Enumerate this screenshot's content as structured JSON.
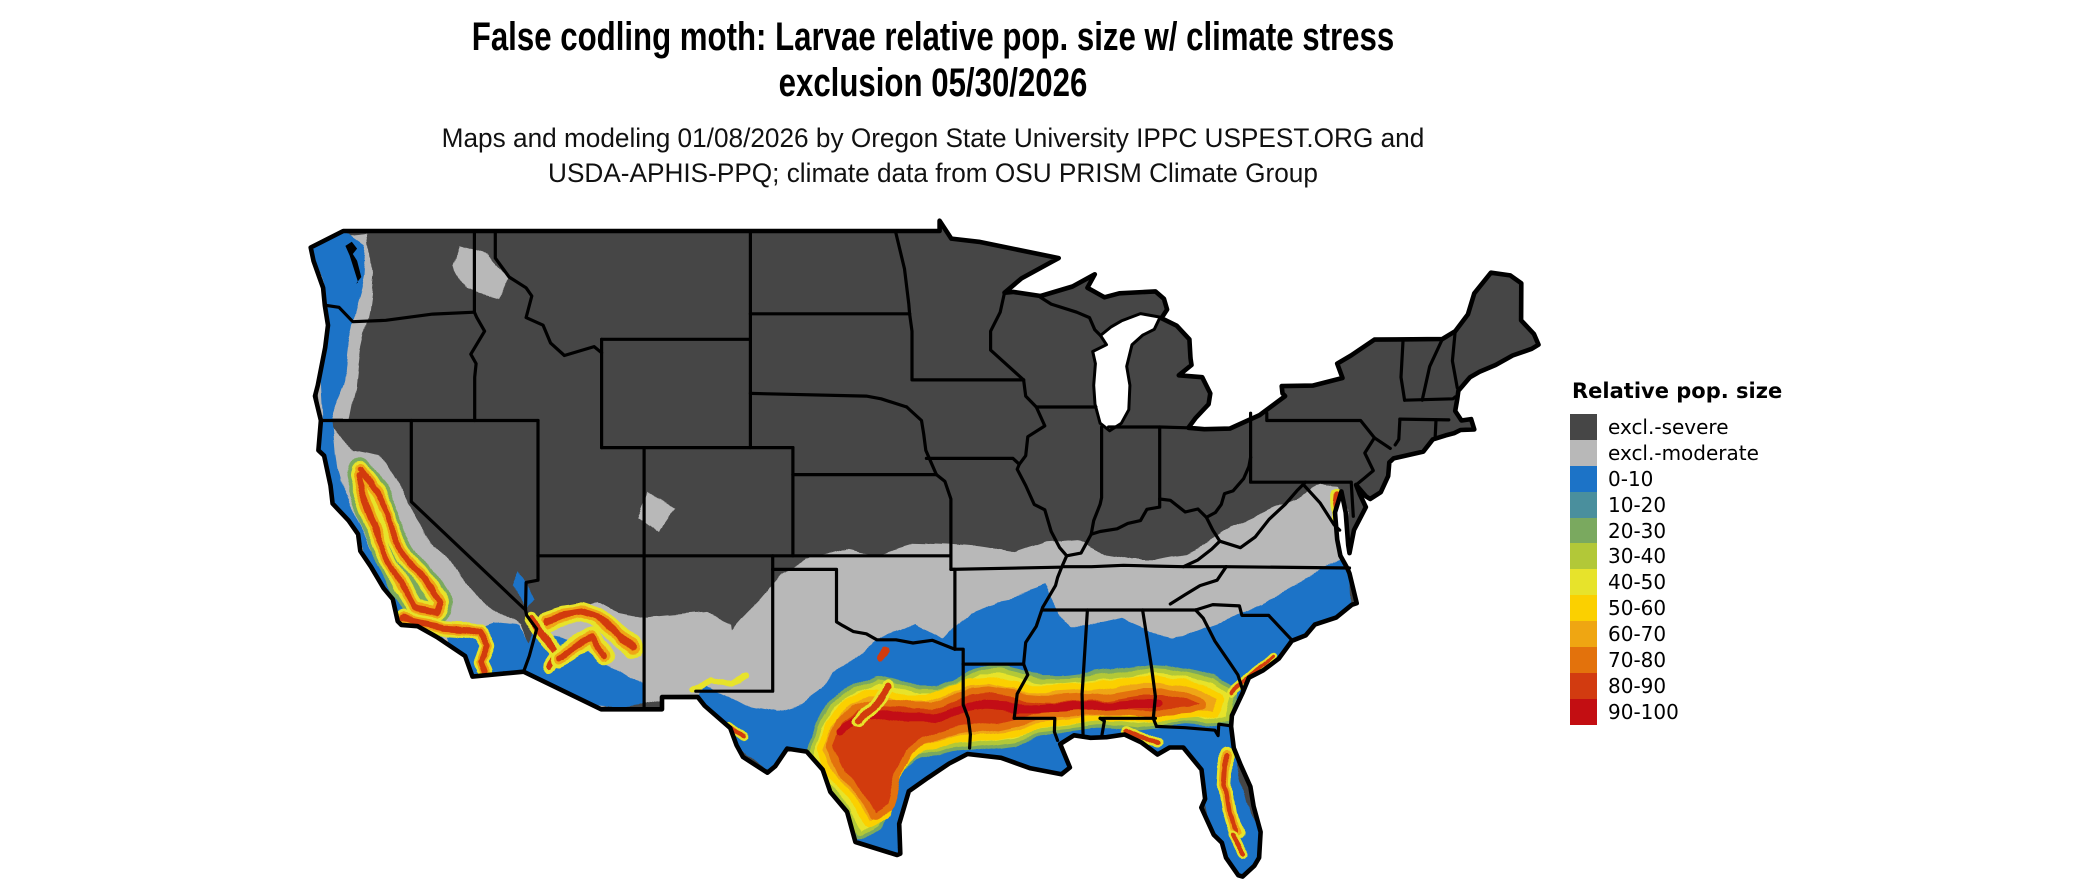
{
  "header": {
    "title_line1": "False codling moth: Larvae relative pop. size w/ climate stress",
    "title_line2": "exclusion 05/30/2026",
    "subtitle_line1": "Maps and modeling 01/08/2026 by Oregon State University IPPC USPEST.ORG and",
    "subtitle_line2": "USDA-APHIS-PPQ; climate data from OSU PRISM Climate Group"
  },
  "legend": {
    "title": "Relative pop. size",
    "entries": [
      {
        "key": "sev",
        "label": "excl.-severe",
        "color": "#464646"
      },
      {
        "key": "mod",
        "label": "excl.-moderate",
        "color": "#b8b8b8"
      },
      {
        "key": "b0",
        "label": "0-10",
        "color": "#1c73c7"
      },
      {
        "key": "b10",
        "label": "10-20",
        "color": "#4a8f9d"
      },
      {
        "key": "b20",
        "label": "20-30",
        "color": "#7aa95f"
      },
      {
        "key": "b30",
        "label": "30-40",
        "color": "#b2c838"
      },
      {
        "key": "b40",
        "label": "40-50",
        "color": "#e7e32b"
      },
      {
        "key": "b50",
        "label": "50-60",
        "color": "#fbd000"
      },
      {
        "key": "b60",
        "label": "60-70",
        "color": "#efa612"
      },
      {
        "key": "b70",
        "label": "70-80",
        "color": "#e3720c"
      },
      {
        "key": "b80",
        "label": "80-90",
        "color": "#d23b10"
      },
      {
        "key": "b90",
        "label": "90-100",
        "color": "#c30e12"
      }
    ]
  },
  "map": {
    "region": "Continental United States",
    "border_color": "#000000",
    "water_color": "#000000",
    "background_color": "#ffffff"
  }
}
